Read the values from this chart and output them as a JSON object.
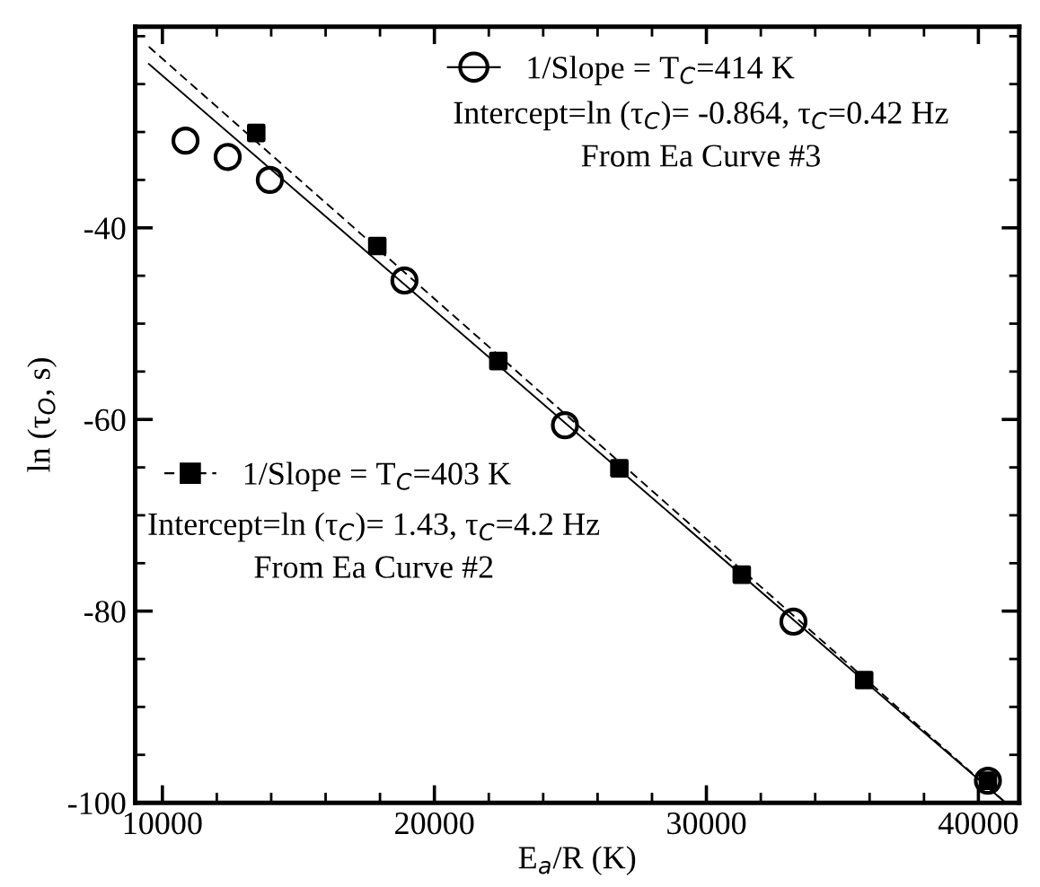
{
  "chart_data": {
    "type": "scatter",
    "xlabel": "E$_{a}$/R (K)",
    "ylabel": "ln (τ$_{O}$, s)",
    "xlim": [
      9000,
      41500
    ],
    "ylim": [
      -100,
      -19
    ],
    "xticks": [
      10000,
      {
        "value": 12000,
        "label": null
      },
      {
        "value": 14000,
        "label": null
      },
      {
        "value": 16000,
        "label": null
      },
      {
        "value": 18000,
        "label": null
      },
      20000,
      {
        "value": 22000,
        "label": null
      },
      {
        "value": 24000,
        "label": null
      },
      {
        "value": 26000,
        "label": null
      },
      {
        "value": 28000,
        "label": null
      },
      30000,
      {
        "value": 32000,
        "label": null
      },
      {
        "value": 34000,
        "label": null
      },
      {
        "value": 36000,
        "label": null
      },
      {
        "value": 38000,
        "label": null
      },
      40000
    ],
    "yticks": [
      {
        "value": -20,
        "label": null
      },
      {
        "value": -25,
        "label": null
      },
      {
        "value": -30,
        "label": null
      },
      {
        "value": -35,
        "label": null
      },
      -40,
      {
        "value": -45,
        "label": null
      },
      {
        "value": -50,
        "label": null
      },
      {
        "value": -55,
        "label": null
      },
      -60,
      {
        "value": -65,
        "label": null
      },
      {
        "value": -70,
        "label": null
      },
      {
        "value": -75,
        "label": null
      },
      -80,
      {
        "value": -85,
        "label": null
      },
      {
        "value": -90,
        "label": null
      },
      {
        "value": -95,
        "label": null
      },
      -100
    ],
    "grid": false,
    "legend": "top",
    "series": [
      {
        "name": "1/Slope = T$_{C}$=414 K",
        "color": "#000000",
        "marker": "circle",
        "line_style": "solid",
        "x": [
          10850,
          12400,
          13950,
          18900,
          24800,
          33200,
          40350
        ],
        "values": [
          -30.9,
          -32.6,
          -35.0,
          -45.5,
          -60.6,
          -81.1,
          -97.7
        ]
      },
      {
        "name": "1/Slope = T$_{C}$=403 K",
        "color": "#000000",
        "marker": "square",
        "line_style": "dashed",
        "x": [
          13450,
          17900,
          22350,
          26800,
          31300,
          35800,
          40350
        ],
        "values": [
          -30.1,
          -41.9,
          -53.9,
          -65.1,
          -76.2,
          -87.2,
          -97.7
        ]
      },
      {
        "type": "line",
        "color": "#000000",
        "marker": "none",
        "line_style": "solid",
        "x": [
          9500,
          41000
        ],
        "values": [
          -22.9,
          -100
        ]
      },
      {
        "type": "line",
        "color": "#000000",
        "marker": "none",
        "line_style": "dashed",
        "x": [
          9500,
          41000
        ],
        "values": [
          -21.1,
          -100
        ]
      }
    ],
    "annotations": [
      "Intercept=ln (τ$_{C}$)= -0.864, τ$_{C}$=0.42 Hz",
      "From Ea Curve #3",
      "Intercept=ln (τ$_{C}$)= 1.43, τ$_{C}$=4.2 Hz",
      "From Ea Curve #2"
    ]
  }
}
